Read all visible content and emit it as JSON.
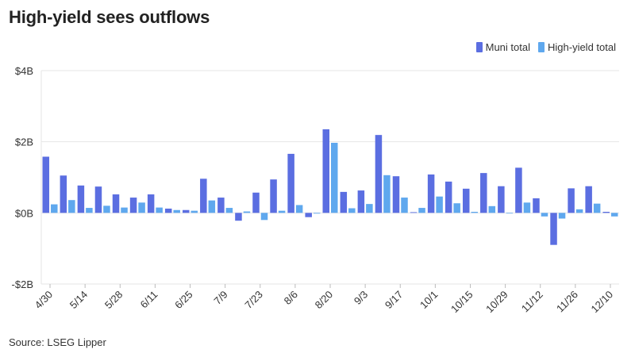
{
  "title": "High-yield sees outflows",
  "source": "Source: LSEG Lipper",
  "chart_data": {
    "type": "bar",
    "title": "High-yield sees outflows",
    "xlabel": "",
    "ylabel": "",
    "ylim": [
      -2,
      4
    ],
    "yticks": [
      {
        "value": 4,
        "label": "$4B"
      },
      {
        "value": 2,
        "label": "$2B"
      },
      {
        "value": 0,
        "label": "$0B"
      },
      {
        "value": -2,
        "label": "-$2B"
      }
    ],
    "grid": true,
    "legend_position": "top-right",
    "categories": [
      "4/30",
      "5/7",
      "5/14",
      "5/21",
      "5/28",
      "6/4",
      "6/11",
      "6/18",
      "6/25",
      "7/2",
      "7/9",
      "7/16",
      "7/23",
      "7/30",
      "8/6",
      "8/13",
      "8/20",
      "8/27",
      "9/3",
      "9/10",
      "9/17",
      "9/24",
      "10/1",
      "10/8",
      "10/15",
      "10/22",
      "10/29",
      "11/5",
      "11/12",
      "11/19",
      "11/26",
      "12/3",
      "12/10"
    ],
    "tick_labels": [
      "4/30",
      "5/14",
      "5/28",
      "6/11",
      "6/25",
      "7/9",
      "7/23",
      "8/6",
      "8/20",
      "9/3",
      "9/17",
      "10/1",
      "10/15",
      "10/29",
      "11/12",
      "11/26",
      "12/10"
    ],
    "series": [
      {
        "name": "Muni total",
        "color": "#5b6ee1",
        "values": [
          1.58,
          1.05,
          0.77,
          0.74,
          0.52,
          0.43,
          0.52,
          0.12,
          0.08,
          0.96,
          0.43,
          -0.22,
          0.57,
          0.94,
          1.66,
          -0.12,
          2.35,
          0.59,
          0.63,
          2.19,
          1.03,
          0.02,
          1.08,
          0.88,
          0.68,
          1.12,
          0.75,
          1.27,
          0.41,
          -0.9,
          0.69,
          0.75,
          0.03
        ]
      },
      {
        "name": "High-yield total",
        "color": "#5fa8ee",
        "values": [
          0.24,
          0.36,
          0.14,
          0.2,
          0.15,
          0.29,
          0.15,
          0.08,
          0.06,
          0.35,
          0.14,
          0.04,
          -0.2,
          0.06,
          0.22,
          -0.02,
          1.97,
          0.13,
          0.25,
          1.06,
          0.43,
          0.14,
          0.46,
          0.27,
          0.03,
          0.19,
          0.0,
          0.29,
          -0.1,
          -0.16,
          0.1,
          0.26,
          -0.1
        ]
      }
    ]
  }
}
